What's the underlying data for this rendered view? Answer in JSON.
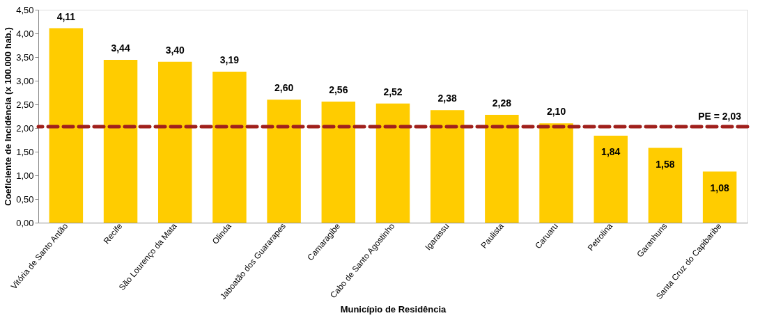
{
  "chart_data": {
    "type": "bar",
    "xlabel": "Município de Residência",
    "ylabel": "Coeficiente de Incidência (x 100.000 hab.)",
    "categories": [
      "Vitória de Santo Antão",
      "Recife",
      "São Lourenço da Mata",
      "Olinda",
      "Jaboatão dos Guararapes",
      "Camaragibe",
      "Cabo de Santo Agostinho",
      "Igarassu",
      "Paulista",
      "Caruaru",
      "Petrolina",
      "Garanhuns",
      "Santa Cruz do Capibaribe"
    ],
    "values": [
      4.11,
      3.44,
      3.4,
      3.19,
      2.6,
      2.56,
      2.52,
      2.38,
      2.28,
      2.1,
      1.84,
      1.58,
      1.08
    ],
    "value_labels": [
      "4,11",
      "3,44",
      "3,40",
      "3,19",
      "2,60",
      "2,56",
      "2,52",
      "2,38",
      "2,28",
      "2,10",
      "1,84",
      "1,58",
      "1,08"
    ],
    "color": "#ffcc00",
    "ylim": [
      0,
      4.5
    ],
    "yticks": [
      {
        "value": 0,
        "label": "0,00"
      },
      {
        "value": 0.5,
        "label": "0,50"
      },
      {
        "value": 1,
        "label": "1,00"
      },
      {
        "value": 1.5,
        "label": "1,50"
      },
      {
        "value": 2,
        "label": "2,00"
      },
      {
        "value": 2.5,
        "label": "2,50"
      },
      {
        "value": 3,
        "label": "3,00"
      },
      {
        "value": 3.5,
        "label": "3,50"
      },
      {
        "value": 4,
        "label": "4,00"
      },
      {
        "value": 4.5,
        "label": "4,50"
      }
    ],
    "ref_lines": [
      {
        "axis": "y",
        "value": 2.03,
        "label": "PE = 2,03",
        "color": "#a0201c",
        "line_style": "dashed"
      }
    ],
    "grid": false
  }
}
